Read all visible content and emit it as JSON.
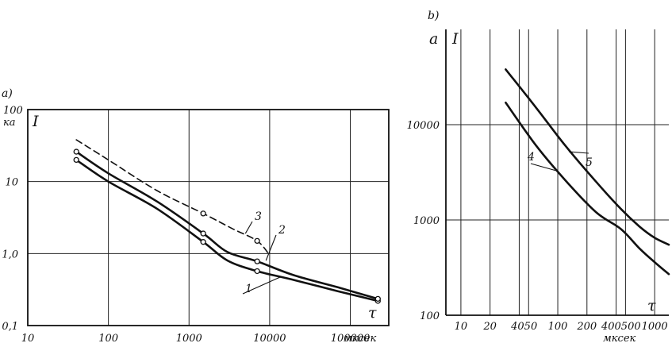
{
  "chart_data": [
    {
      "type": "line",
      "panel_label": "a)",
      "y_unit_value": "100",
      "y_unit_text": "ка",
      "y_axis_symbol": "I",
      "x_axis_symbol": "τ",
      "x_unit_text": "мксек",
      "xscale": "log",
      "yscale": "log",
      "xlim": [
        10,
        300000
      ],
      "ylim": [
        0.1,
        100
      ],
      "x_ticks": [
        10,
        100,
        1000,
        10000,
        100000
      ],
      "x_tick_labels": [
        "10",
        "100",
        "1000",
        "10000",
        "100000"
      ],
      "y_ticks": [
        0.1,
        1,
        10
      ],
      "y_tick_labels": [
        "0,1",
        "1,0",
        "10"
      ],
      "grid": true,
      "series": [
        {
          "name": "1",
          "style": "solid",
          "markers": true,
          "x": [
            40,
            100,
            400,
            1500,
            3000,
            7000,
            20000,
            70000,
            220000
          ],
          "y": [
            20,
            10,
            4.2,
            1.45,
            0.8,
            0.57,
            0.43,
            0.3,
            0.22
          ]
        },
        {
          "name": "2",
          "style": "solid",
          "markers": true,
          "x": [
            40,
            100,
            400,
            1500,
            3000,
            7000,
            20000,
            70000,
            220000
          ],
          "y": [
            26,
            13,
            5.3,
            1.9,
            1.05,
            0.78,
            0.5,
            0.34,
            0.235
          ]
        },
        {
          "name": "3",
          "style": "dashed",
          "markers": true,
          "x": [
            40,
            100,
            400,
            1500,
            3500,
            7000,
            10000
          ],
          "y": [
            38,
            20,
            7.5,
            3.6,
            2.2,
            1.5,
            0.95
          ]
        }
      ],
      "markers": [
        {
          "series": "1",
          "x": 40,
          "y": 20
        },
        {
          "series": "1",
          "x": 1500,
          "y": 1.45
        },
        {
          "series": "1",
          "x": 7000,
          "y": 0.57
        },
        {
          "series": "1",
          "x": 220000,
          "y": 0.22
        },
        {
          "series": "2",
          "x": 40,
          "y": 26
        },
        {
          "series": "2",
          "x": 1500,
          "y": 1.9
        },
        {
          "series": "2",
          "x": 7000,
          "y": 0.78
        },
        {
          "series": "2",
          "x": 220000,
          "y": 0.235
        },
        {
          "series": "3",
          "x": 1500,
          "y": 3.6
        },
        {
          "series": "3",
          "x": 7000,
          "y": 1.5
        }
      ]
    },
    {
      "type": "line",
      "panel_label": "b)",
      "y_unit_text": "a",
      "y_axis_symbol": "I",
      "x_axis_symbol": "τ",
      "x_unit_text": "мксек",
      "xscale": "log",
      "yscale": "log",
      "xlim": [
        7,
        1400
      ],
      "ylim": [
        100,
        100000
      ],
      "x_ticks": [
        10,
        20,
        40,
        50,
        100,
        200,
        400,
        500,
        1000
      ],
      "x_tick_labels": [
        "10",
        "20",
        "40",
        "50",
        "100",
        "200",
        "400",
        "500",
        "1000"
      ],
      "x_tick_label_text": [
        "10",
        "20",
        "4050",
        "100",
        "200",
        "400500",
        "1000"
      ],
      "y_ticks": [
        100,
        1000,
        10000
      ],
      "y_tick_labels": [
        "100",
        "1000",
        "10000"
      ],
      "grid": true,
      "series": [
        {
          "name": "4",
          "style": "solid",
          "x": [
            29,
            60,
            120,
            250,
            450,
            700,
            1000,
            1400
          ],
          "y": [
            17000,
            6000,
            2600,
            1200,
            800,
            500,
            360,
            270
          ]
        },
        {
          "name": "5",
          "style": "solid",
          "x": [
            29,
            60,
            120,
            250,
            450,
            700,
            1000,
            1400
          ],
          "y": [
            38000,
            15000,
            6000,
            2500,
            1300,
            850,
            650,
            550
          ]
        }
      ]
    }
  ]
}
